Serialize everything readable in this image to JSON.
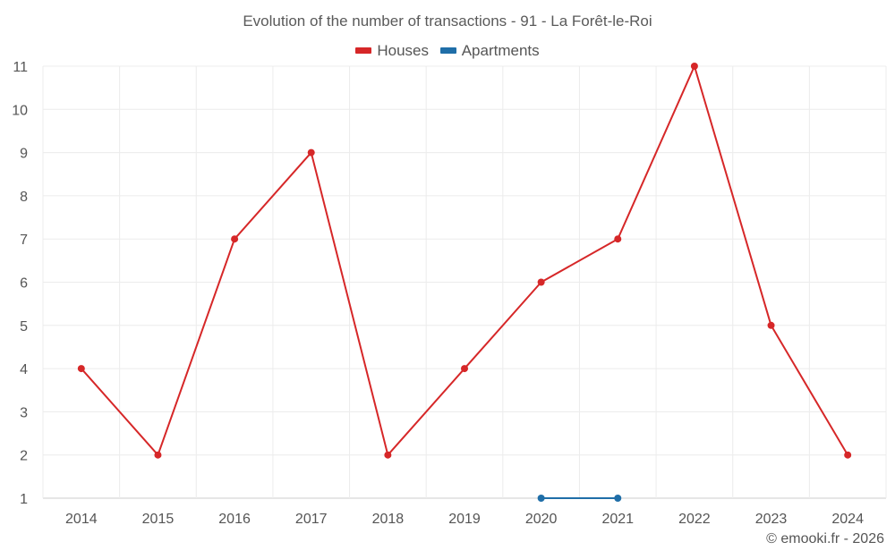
{
  "chart_data": {
    "type": "line",
    "title": "Evolution of the number of transactions - 91 - La Forêt-le-Roi",
    "categories": [
      "2014",
      "2015",
      "2016",
      "2017",
      "2018",
      "2019",
      "2020",
      "2021",
      "2022",
      "2023",
      "2024"
    ],
    "series": [
      {
        "name": "Houses",
        "color": "#d62728",
        "values": [
          4,
          2,
          7,
          9,
          2,
          4,
          6,
          7,
          11,
          5,
          2
        ]
      },
      {
        "name": "Apartments",
        "color": "#1f6ea8",
        "values": [
          null,
          null,
          null,
          null,
          null,
          null,
          1,
          1,
          null,
          null,
          null
        ]
      }
    ],
    "y_ticks": [
      1,
      2,
      3,
      4,
      5,
      6,
      7,
      8,
      9,
      10,
      11
    ],
    "ylim": [
      1,
      11
    ],
    "xlabel": "",
    "ylabel": "",
    "grid": true,
    "legend_position": "top-center"
  },
  "watermark": "© emooki.fr - 2026"
}
